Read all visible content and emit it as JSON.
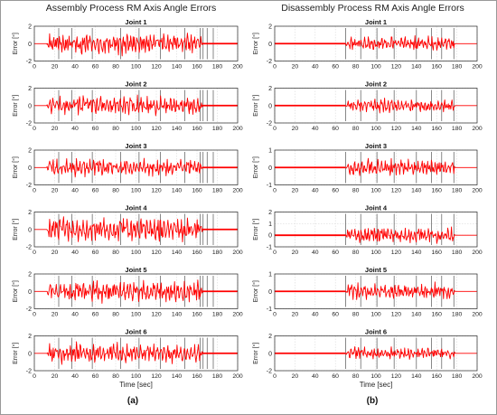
{
  "panels": [
    {
      "id": "assembly",
      "title": "Assembly Process RM Axis Angle Errors",
      "caption": "(a)",
      "xlabel": "Time [sec]",
      "start": 12,
      "end": 165,
      "seed": 11,
      "dividers": [
        24,
        37,
        57,
        85,
        103,
        124,
        148,
        163,
        166,
        170,
        176
      ],
      "joints": [
        {
          "title": "Joint 1",
          "ylabel": "Error [°]",
          "ylim": [
            -2,
            2
          ],
          "yticks": [
            -2,
            0,
            2
          ],
          "amp": 0.9
        },
        {
          "title": "Joint 2",
          "ylabel": "Error [°]",
          "ylim": [
            -2,
            2
          ],
          "yticks": [
            -2,
            0,
            2
          ],
          "amp": 0.8
        },
        {
          "title": "Joint 3",
          "ylabel": "Error [°]",
          "ylim": [
            -2,
            2
          ],
          "yticks": [
            -2,
            0,
            2
          ],
          "amp": 0.7
        },
        {
          "title": "Joint 4",
          "ylabel": "Error [°]",
          "ylim": [
            -2,
            2
          ],
          "yticks": [
            -2,
            0,
            2
          ],
          "amp": 1.0
        },
        {
          "title": "Joint 5",
          "ylabel": "Error [°]",
          "ylim": [
            -2,
            2
          ],
          "yticks": [
            -2,
            0,
            2
          ],
          "amp": 0.9
        },
        {
          "title": "Joint 6",
          "ylabel": "Error [°]",
          "ylim": [
            -2,
            2
          ],
          "yticks": [
            -2,
            0,
            2
          ],
          "amp": 0.85
        }
      ]
    },
    {
      "id": "disassembly",
      "title": "Disassembly Process RM Axis Angle Errors",
      "caption": "(b)",
      "xlabel": "Time [sec]",
      "start": 70,
      "end": 178,
      "seed": 29,
      "dividers": [
        70,
        85,
        101,
        118,
        140,
        155,
        165,
        177
      ],
      "joints": [
        {
          "title": "Joint 1",
          "ylabel": "Error [°]",
          "ylim": [
            -2,
            2
          ],
          "yticks": [
            -2,
            0,
            2
          ],
          "amp": 0.6
        },
        {
          "title": "Joint 2",
          "ylabel": "Error [°]",
          "ylim": [
            -2,
            2
          ],
          "yticks": [
            -2,
            0,
            2
          ],
          "amp": 0.55
        },
        {
          "title": "Joint 3",
          "ylabel": "Error [°]",
          "ylim": [
            -1,
            1
          ],
          "yticks": [
            -1,
            0,
            1
          ],
          "amp": 0.35
        },
        {
          "title": "Joint 4",
          "ylabel": "Error [°]",
          "ylim": [
            -1,
            2
          ],
          "yticks": [
            -1,
            0,
            1,
            2
          ],
          "amp": 0.5
        },
        {
          "title": "Joint 5",
          "ylabel": "Error [°]",
          "ylim": [
            -1,
            1
          ],
          "yticks": [
            -1,
            0,
            1
          ],
          "amp": 0.35
        },
        {
          "title": "Joint 6",
          "ylabel": "Error [°]",
          "ylim": [
            -2,
            2
          ],
          "yticks": [
            -2,
            0,
            2
          ],
          "amp": 0.5
        }
      ]
    }
  ],
  "chart_data": [
    {
      "type": "line",
      "title": "Assembly Process RM Axis Angle Errors",
      "xlabel": "Time [sec]",
      "ylabel": "Error [°]",
      "xlim": [
        0,
        200
      ],
      "xticks": [
        0,
        20,
        40,
        60,
        80,
        100,
        120,
        140,
        160,
        180,
        200
      ],
      "ylim": [
        -2,
        2
      ],
      "series": [
        {
          "name": "Joint 1",
          "color": "#ff0000"
        },
        {
          "name": "Joint 2",
          "color": "#ff0000"
        },
        {
          "name": "Joint 3",
          "color": "#ff0000"
        },
        {
          "name": "Joint 4",
          "color": "#ff0000"
        },
        {
          "name": "Joint 5",
          "color": "#ff0000"
        },
        {
          "name": "Joint 6",
          "color": "#ff0000"
        }
      ],
      "grid": true,
      "active_range": [
        12,
        165
      ]
    },
    {
      "type": "line",
      "title": "Disassembly Process RM Axis Angle Errors",
      "xlabel": "Time [sec]",
      "ylabel": "Error [°]",
      "xlim": [
        0,
        200
      ],
      "xticks": [
        0,
        20,
        40,
        60,
        80,
        100,
        120,
        140,
        160,
        180,
        200
      ],
      "series": [
        {
          "name": "Joint 1",
          "color": "#ff0000"
        },
        {
          "name": "Joint 2",
          "color": "#ff0000"
        },
        {
          "name": "Joint 3",
          "color": "#ff0000"
        },
        {
          "name": "Joint 4",
          "color": "#ff0000"
        },
        {
          "name": "Joint 5",
          "color": "#ff0000"
        },
        {
          "name": "Joint 6",
          "color": "#ff0000"
        }
      ],
      "grid": true,
      "active_range": [
        70,
        178
      ]
    }
  ],
  "colors": {
    "line": "#ff0000",
    "grid": "#d9d9d9",
    "divider": "#555555",
    "axis": "#262626",
    "background": "#ffffff"
  },
  "xticks": [
    0,
    20,
    40,
    60,
    80,
    100,
    120,
    140,
    160,
    180,
    200
  ],
  "xlim": [
    0,
    200
  ]
}
